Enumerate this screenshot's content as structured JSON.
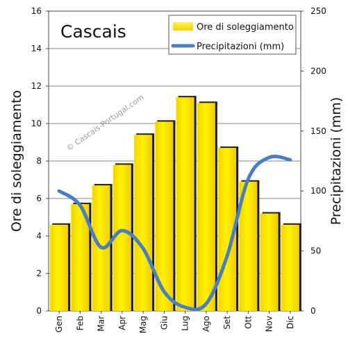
{
  "chart_data": {
    "type": "bar",
    "title": "Cascais",
    "watermark": "© Cascais-Portugal.com",
    "categories": [
      "Gen",
      "Feb",
      "Mar",
      "Apr",
      "Mag",
      "Giu",
      "Lug",
      "Ago",
      "Set",
      "Ott",
      "Nov",
      "Dic"
    ],
    "series": [
      {
        "name": "Ore di soleggiamento",
        "type": "bar",
        "axis": "left",
        "color": "#f5e800",
        "values": [
          4.6,
          5.7,
          6.7,
          7.8,
          9.4,
          10.1,
          11.4,
          11.1,
          8.7,
          6.9,
          5.2,
          4.6
        ]
      },
      {
        "name": "Precipitazioni (mm)",
        "type": "line",
        "axis": "right",
        "color": "#4a7ec0",
        "values": [
          100,
          88,
          53,
          67,
          52,
          16,
          3,
          6,
          46,
          110,
          128,
          126
        ]
      }
    ],
    "ylabel": "Ore di soleggiamento",
    "ylim": [
      0,
      16
    ],
    "yticks": [
      "0",
      "2",
      "4",
      "6",
      "8",
      "10",
      "12",
      "14",
      "16"
    ],
    "y2label": "Precipitazioni (mm)",
    "y2lim": [
      0,
      250
    ],
    "y2ticks": [
      "0",
      "50",
      "100",
      "150",
      "200",
      "250"
    ],
    "grid": true,
    "legend_position": "top-right"
  }
}
